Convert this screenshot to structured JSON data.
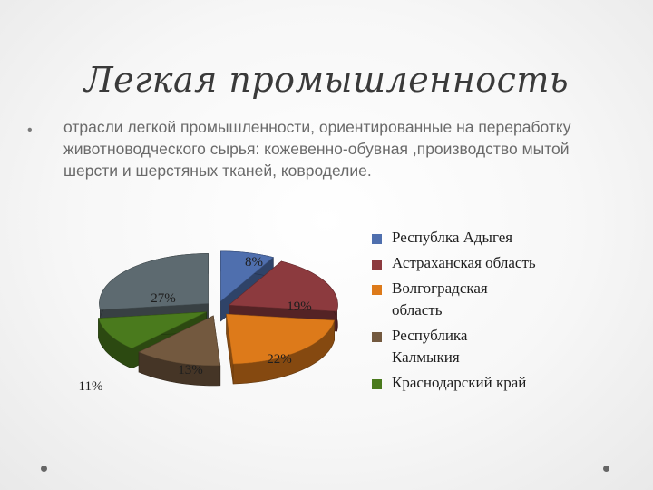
{
  "slide": {
    "title": "Легкая промышленность",
    "bullet": "отрасли легкой промышленности, ориентированные на переработку животноводческого сырья: кожевенно-обувная ,производство мытой шерсти и шерстяных тканей, ковроделие."
  },
  "chart_data": {
    "type": "pie",
    "title": "",
    "style": "3d-exploded",
    "legend_position": "right",
    "series": [
      {
        "name": "Республка Адыгея",
        "value": 8,
        "label": "8%",
        "color": "#4f6fae"
      },
      {
        "name": "Астраханская область",
        "value": 19,
        "label": "19%",
        "color": "#8c3a3e"
      },
      {
        "name": "Волгоградская область",
        "value": 22,
        "label": "22%",
        "color": "#dd7a1a"
      },
      {
        "name": "Республика Калмыкия",
        "value": 13,
        "label": "13%",
        "color": "#73593f"
      },
      {
        "name": "Краснодарский край",
        "value": 11,
        "label": "11%",
        "color": "#4a7a1d"
      },
      {
        "name": "",
        "value": 27,
        "label": "27%",
        "color": "#5d6a70"
      }
    ]
  }
}
